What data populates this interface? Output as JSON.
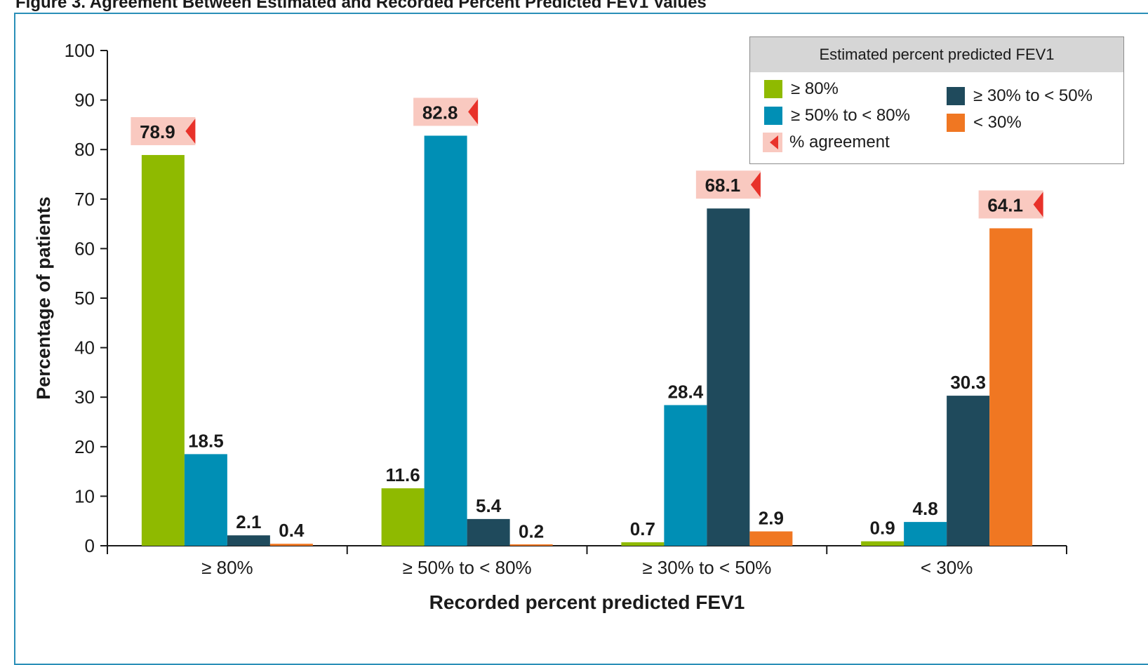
{
  "figure_title": "Figure 3. Agreement Between Estimated and Recorded Percent Predicted FEV1 Values",
  "colors": {
    "frame": "#2a8fb8",
    "agreement_fill": "#f9c9c0",
    "agreement_marker": "#e8322a"
  },
  "chart_data": {
    "type": "bar",
    "xlabel": "Recorded percent predicted FEV1",
    "ylabel": "Percentage of patients",
    "ylim": [
      0,
      100
    ],
    "yticks": [
      0,
      10,
      20,
      30,
      40,
      50,
      60,
      70,
      80,
      90,
      100
    ],
    "categories": [
      "≥ 80%",
      "≥ 50% to < 80%",
      "≥ 30% to < 50%",
      "< 30%"
    ],
    "series": [
      {
        "name": "≥ 80%",
        "color": "#8fba00",
        "values": [
          78.9,
          11.6,
          0.7,
          0.9
        ]
      },
      {
        "name": "≥ 50% to < 80%",
        "color": "#008fb5",
        "values": [
          18.5,
          82.8,
          28.4,
          4.8
        ]
      },
      {
        "name": "≥ 30% to < 50%",
        "color": "#1f4a5c",
        "values": [
          2.1,
          5.4,
          68.1,
          30.3
        ]
      },
      {
        "name": "< 30%",
        "color": "#f07722",
        "values": [
          0.4,
          0.2,
          2.9,
          64.1
        ]
      }
    ],
    "agreement": [
      78.9,
      82.8,
      68.1,
      64.1
    ],
    "legend": {
      "title": "Estimated percent predicted FEV1",
      "position": "top-right",
      "agreement_label": "% agreement"
    }
  }
}
